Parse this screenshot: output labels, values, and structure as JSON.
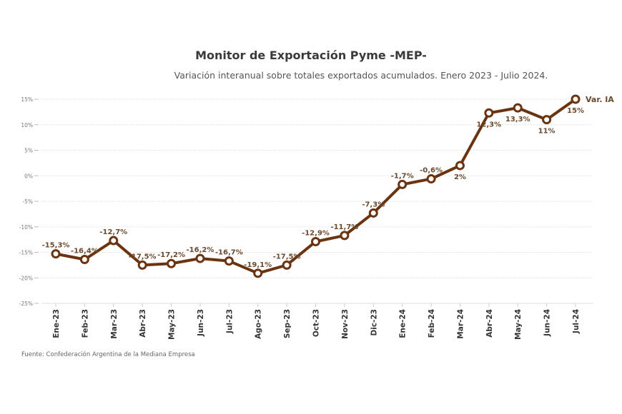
{
  "chart_data": {
    "type": "line",
    "title": "Monitor de Exportación Pyme -MEP-",
    "subtitle": "Variación interanual sobre totales exportados acumulados. Enero 2023 - Julio 2024.",
    "source": "Fuente: Confederación Argentina de la Mediana Empresa",
    "xlabel": "",
    "ylabel": "",
    "ylim": [
      -25,
      15
    ],
    "yticks": [
      15,
      10,
      5,
      0,
      -5,
      -10,
      -15,
      -20,
      -25
    ],
    "ytick_labels": [
      "15%",
      "10%",
      "5%",
      "0%",
      "-5%",
      "-10%",
      "-15%",
      "-20%",
      "-25%"
    ],
    "grid": true,
    "categories": [
      "Ene-23",
      "Feb-23",
      "Mar-23",
      "Abr-23",
      "May-23",
      "Jun-23",
      "Jul-23",
      "Ago-23",
      "Sep-23",
      "Oct-23",
      "Nov-23",
      "Dic-23",
      "Ene-24",
      "Feb-24",
      "Mar-24",
      "Abr-24",
      "May-24",
      "Jun-24",
      "Jul-24"
    ],
    "series": [
      {
        "name": "Var. IA",
        "color": "#6b3410",
        "values": [
          -15.3,
          -16.4,
          -12.7,
          -17.5,
          -17.2,
          -16.2,
          -16.7,
          -19.1,
          -17.5,
          -12.9,
          -11.7,
          -7.3,
          -1.7,
          -0.6,
          2,
          12.3,
          13.3,
          11,
          15
        ],
        "labels": [
          "-15,3%",
          "-16,4%",
          "-12,7%",
          "-17,5%",
          "-17,2%",
          "-16,2%",
          "-16,7%",
          "-19,1%",
          "-17,5%",
          "-12,9%",
          "-11,7%",
          "-7,3%",
          "-1,7%",
          "-0,6%",
          "2%",
          "12,3%",
          "13,3%",
          "11%",
          "15%"
        ],
        "label_pos": [
          "above",
          "above",
          "above",
          "above",
          "above",
          "above",
          "above",
          "above",
          "above",
          "above",
          "above",
          "above",
          "above",
          "above",
          "below",
          "below",
          "below",
          "below",
          "below"
        ]
      }
    ]
  }
}
